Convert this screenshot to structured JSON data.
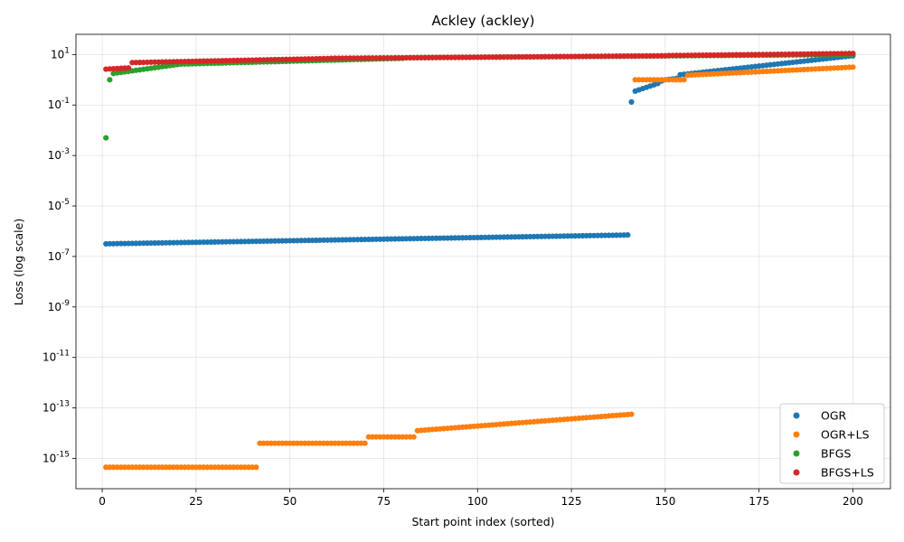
{
  "chart_data": {
    "type": "scatter",
    "title": "Ackley (ackley)",
    "xlabel": "Start point index (sorted)",
    "ylabel": "Loss (log scale)",
    "xlim": [
      -7,
      210
    ],
    "ylim_log10": [
      -16.2,
      1.8
    ],
    "yscale": "log",
    "grid": true,
    "legend_position": "bottom-right",
    "xticks": [
      0,
      25,
      50,
      75,
      100,
      125,
      150,
      175,
      200
    ],
    "yticks": [
      {
        "exp": 1,
        "label": "10",
        "sup": "1"
      },
      {
        "exp": -1,
        "label": "10",
        "sup": "-1"
      },
      {
        "exp": -3,
        "label": "10",
        "sup": "-3"
      },
      {
        "exp": -5,
        "label": "10",
        "sup": "-5"
      },
      {
        "exp": -7,
        "label": "10",
        "sup": "-7"
      },
      {
        "exp": -9,
        "label": "10",
        "sup": "-9"
      },
      {
        "exp": -11,
        "label": "10",
        "sup": "-11"
      },
      {
        "exp": -13,
        "label": "10",
        "sup": "-13"
      },
      {
        "exp": -15,
        "label": "10",
        "sup": "-15"
      }
    ],
    "series": [
      {
        "name": "OGR",
        "color": "#1f77b4",
        "segments": [
          {
            "x": [
              1,
              140
            ],
            "log10y": [
              -6.5,
              -6.15
            ]
          },
          {
            "x": [
              141,
              141
            ],
            "log10y": [
              -0.88,
              -0.88
            ]
          },
          {
            "x": [
              142,
              147
            ],
            "log10y": [
              -0.45,
              -0.2
            ]
          },
          {
            "x": [
              148,
              148
            ],
            "log10y": [
              -0.15,
              -0.15
            ]
          },
          {
            "x": [
              149,
              149
            ],
            "log10y": [
              -0.05,
              -0.05
            ]
          },
          {
            "x": [
              150,
              153
            ],
            "log10y": [
              0.0,
              0.05
            ]
          },
          {
            "x": [
              154,
              200
            ],
            "log10y": [
              0.2,
              0.95
            ]
          }
        ]
      },
      {
        "name": "OGR+LS",
        "color": "#ff7f0e",
        "segments": [
          {
            "x": [
              1,
              41
            ],
            "log10y": [
              -15.35,
              -15.35
            ]
          },
          {
            "x": [
              42,
              70
            ],
            "log10y": [
              -14.4,
              -14.4
            ]
          },
          {
            "x": [
              71,
              83
            ],
            "log10y": [
              -14.15,
              -14.15
            ]
          },
          {
            "x": [
              84,
              141
            ],
            "log10y": [
              -13.9,
              -13.25
            ]
          },
          {
            "x": [
              142,
              155
            ],
            "log10y": [
              0.0,
              0.0
            ]
          },
          {
            "x": [
              156,
              200
            ],
            "log10y": [
              0.18,
              0.5
            ]
          }
        ]
      },
      {
        "name": "BFGS",
        "color": "#2ca02c",
        "segments": [
          {
            "x": [
              1,
              1
            ],
            "log10y": [
              -2.3,
              -2.3
            ]
          },
          {
            "x": [
              2,
              2
            ],
            "log10y": [
              0.0,
              0.0
            ]
          },
          {
            "x": [
              3,
              20
            ],
            "log10y": [
              0.25,
              0.6
            ]
          },
          {
            "x": [
              21,
              80
            ],
            "log10y": [
              0.62,
              0.85
            ]
          },
          {
            "x": [
              81,
              200
            ],
            "log10y": [
              0.87,
              1.0
            ]
          }
        ]
      },
      {
        "name": "BFGS+LS",
        "color": "#d62728",
        "segments": [
          {
            "x": [
              1,
              7
            ],
            "log10y": [
              0.42,
              0.47
            ]
          },
          {
            "x": [
              8,
              60
            ],
            "log10y": [
              0.68,
              0.84
            ]
          },
          {
            "x": [
              61,
              150
            ],
            "log10y": [
              0.85,
              0.95
            ]
          },
          {
            "x": [
              151,
              200
            ],
            "log10y": [
              0.96,
              1.04
            ]
          }
        ]
      }
    ]
  }
}
